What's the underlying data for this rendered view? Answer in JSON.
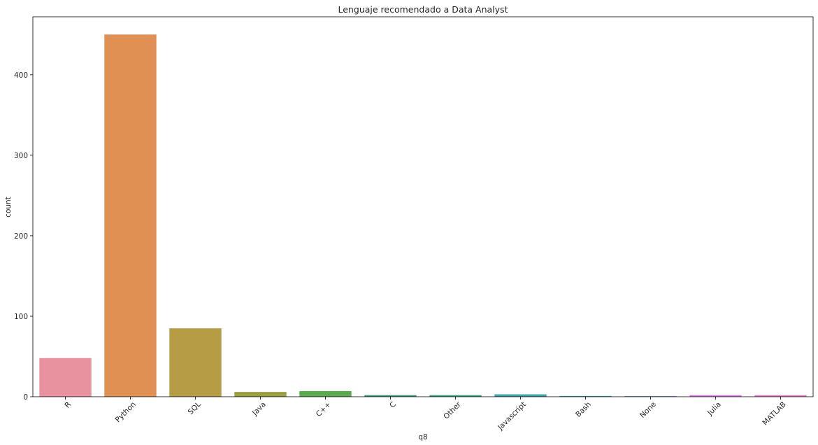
{
  "chart_data": {
    "type": "bar",
    "title": "Lenguaje recomendado a Data Analyst",
    "xlabel": "q8",
    "ylabel": "count",
    "ylim": [
      0,
      472
    ],
    "yticks": [
      0,
      100,
      200,
      300,
      400
    ],
    "ytick_labels": [
      "0",
      "100",
      "200",
      "300",
      "400"
    ],
    "grid": false,
    "legend": "none",
    "categories": [
      "R",
      "Python",
      "SQL",
      "Java",
      "C++",
      "C",
      "Other",
      "Javascript",
      "Bash",
      "None",
      "Julia",
      "MATLAB"
    ],
    "values": [
      48,
      450,
      85,
      6,
      7,
      2,
      2,
      3,
      1,
      1,
      2,
      2
    ],
    "colors": [
      "#e8929f",
      "#e09052",
      "#b69c45",
      "#9c9e42",
      "#5caa4f",
      "#3ea27a",
      "#3ea58e",
      "#3fa2a9",
      "#44a3c1",
      "#8fa4e6",
      "#dc7de9",
      "#e582c7"
    ]
  }
}
